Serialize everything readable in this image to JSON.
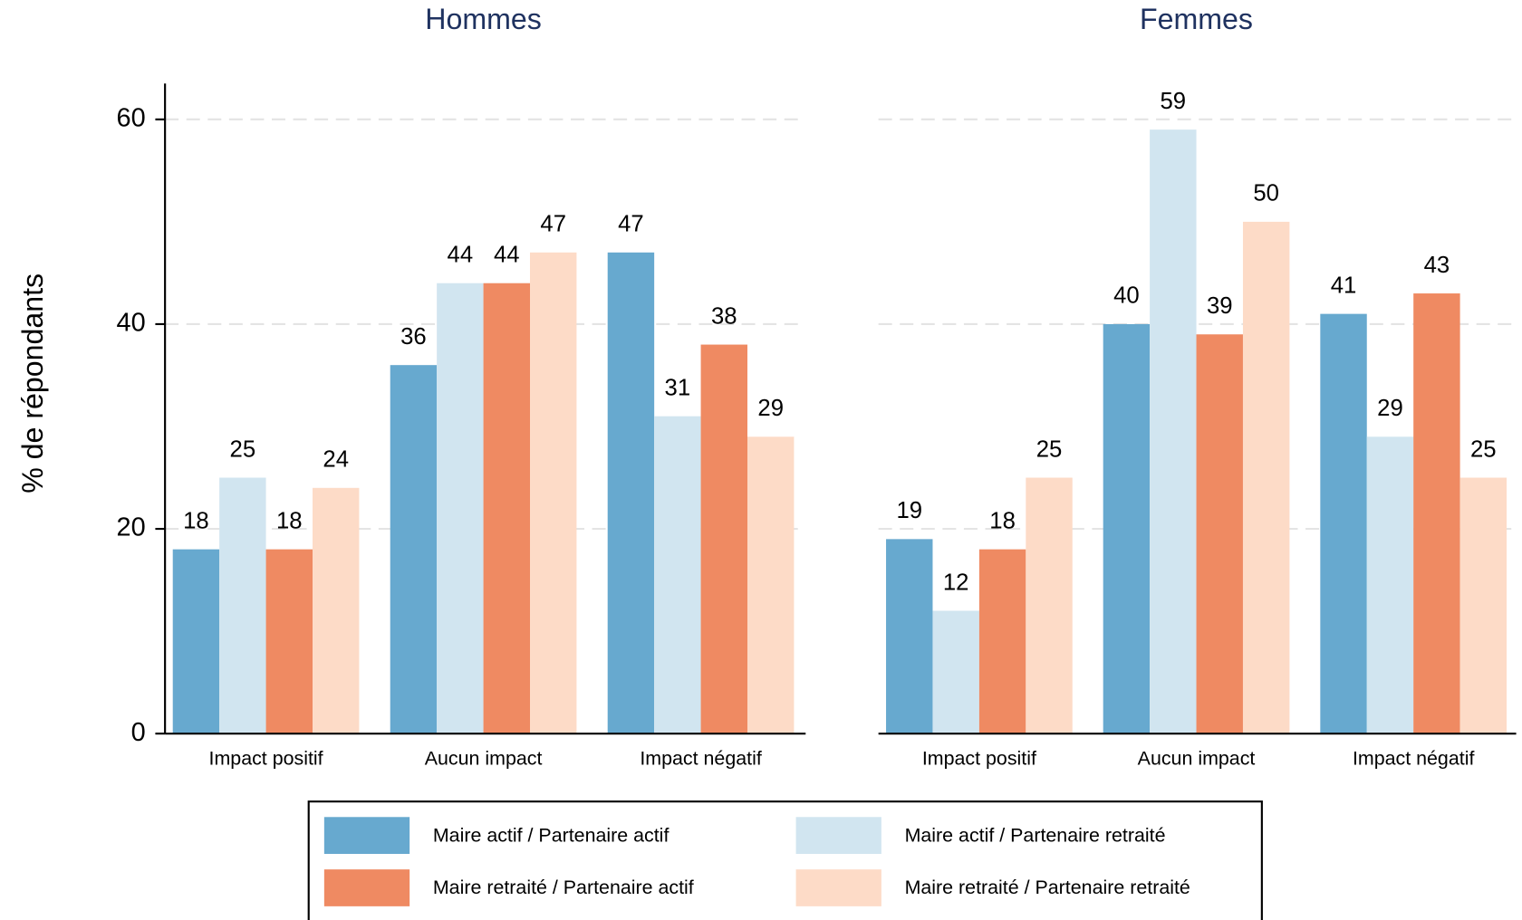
{
  "chart_data": [
    {
      "type": "bar",
      "title": "Hommes",
      "y_label": "% de répondants",
      "categories": [
        "Impact positif",
        "Aucun impact",
        "Impact négatif"
      ],
      "series": [
        {
          "name": "Maire actif / Partenaire actif",
          "color": "#67a9cf",
          "values": [
            18,
            36,
            47
          ]
        },
        {
          "name": "Maire actif / Partenaire retraité",
          "color": "#d1e5f0",
          "values": [
            25,
            44,
            31
          ]
        },
        {
          "name": "Maire retraité / Partenaire actif",
          "color": "#ef8a62",
          "values": [
            18,
            44,
            38
          ]
        },
        {
          "name": "Maire retraité / Partenaire retraité",
          "color": "#fddbc7",
          "values": [
            24,
            47,
            29
          ]
        }
      ],
      "ylim": [
        0,
        63.5
      ],
      "yticks": [
        0,
        20,
        40,
        60
      ],
      "grid": true
    },
    {
      "type": "bar",
      "title": "Femmes",
      "categories": [
        "Impact positif",
        "Aucun impact",
        "Impact négatif"
      ],
      "series": [
        {
          "name": "Maire actif / Partenaire actif",
          "color": "#67a9cf",
          "values": [
            19,
            40,
            41
          ]
        },
        {
          "name": "Maire actif / Partenaire retraité",
          "color": "#d1e5f0",
          "values": [
            12,
            59,
            29
          ]
        },
        {
          "name": "Maire retraité / Partenaire actif",
          "color": "#ef8a62",
          "values": [
            18,
            39,
            43
          ]
        },
        {
          "name": "Maire retraité / Partenaire retraité",
          "color": "#fddbc7",
          "values": [
            25,
            50,
            25
          ]
        }
      ],
      "ylim": [
        0,
        63.5
      ],
      "yticks": [
        0,
        20,
        40,
        60
      ],
      "grid": true
    }
  ]
}
